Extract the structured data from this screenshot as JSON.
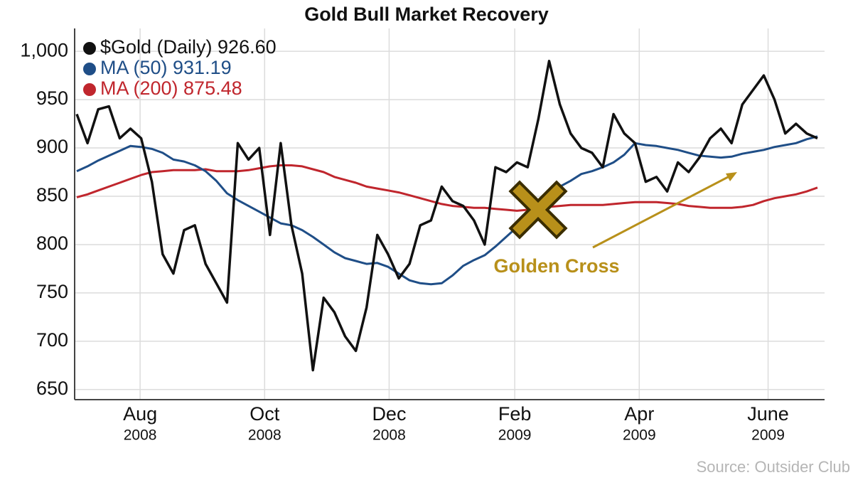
{
  "chart_data": {
    "type": "line",
    "title": "Gold Bull Market Recovery",
    "source": "Source: Outsider Club",
    "annotation": "Golden Cross",
    "annotation_color": "#b8901a",
    "grid": true,
    "legend": "upper left",
    "xlim": [
      0,
      69
    ],
    "xticks": [
      {
        "value": 5.9,
        "label": "Aug"
      },
      {
        "value": 17.5,
        "label": "Oct"
      },
      {
        "value": 29.1,
        "label": "Dec"
      },
      {
        "value": 40.8,
        "label": "Feb"
      },
      {
        "value": 52.4,
        "label": "Apr"
      },
      {
        "value": 64.4,
        "label": "June"
      }
    ],
    "xtick_years": [
      "2008",
      "2008",
      "2008",
      "2009",
      "2009",
      "2009"
    ],
    "ylim": [
      641,
      1020
    ],
    "yticks": [
      650,
      700,
      750,
      800,
      850,
      900,
      950,
      {
        "value": 1000,
        "label": "1,000"
      }
    ],
    "series": [
      {
        "name": "$Gold (Daily) 926.60",
        "color": "#111111",
        "values": [
          935,
          905,
          940,
          943,
          910,
          920,
          910,
          865,
          790,
          770,
          815,
          820,
          780,
          760,
          740,
          905,
          888,
          900,
          810,
          905,
          820,
          770,
          670,
          745,
          730,
          705,
          690,
          735,
          810,
          790,
          765,
          780,
          820,
          825,
          860,
          845,
          840,
          825,
          800,
          880,
          875,
          885,
          880,
          930,
          990,
          945,
          915,
          900,
          895,
          880,
          935,
          915,
          905,
          865,
          870,
          855,
          885,
          875,
          890,
          910,
          920,
          905,
          945,
          960,
          975,
          950,
          915,
          925,
          915,
          910
        ]
      },
      {
        "name": "MA (50) 931.19",
        "color": "#1f4e87",
        "values": [
          876,
          881,
          887,
          892,
          897,
          902,
          901,
          899,
          895,
          888,
          886,
          882,
          876,
          866,
          853,
          846,
          840,
          834,
          828,
          822,
          820,
          815,
          808,
          800,
          792,
          786,
          783,
          780,
          781,
          777,
          770,
          763,
          760,
          759,
          760,
          768,
          778,
          784,
          789,
          798,
          808,
          818,
          830,
          842,
          852,
          860,
          866,
          873,
          876,
          880,
          885,
          893,
          905,
          903,
          902,
          900,
          898,
          895,
          892,
          891,
          890,
          891,
          894,
          896,
          898,
          901,
          903,
          905,
          909,
          912
        ]
      },
      {
        "name": "MA (200) 875.48",
        "color": "#c0262d",
        "values": [
          849,
          852,
          856,
          860,
          864,
          868,
          872,
          875,
          876,
          877,
          877,
          877,
          878,
          876,
          876,
          876,
          877,
          879,
          881,
          882,
          882,
          881,
          878,
          875,
          870,
          867,
          864,
          860,
          858,
          856,
          854,
          851,
          848,
          845,
          842,
          840,
          839,
          838,
          838,
          837,
          836,
          835,
          836,
          838,
          839,
          840,
          841,
          841,
          841,
          841,
          842,
          843,
          844,
          844,
          844,
          843,
          842,
          840,
          839,
          838,
          838,
          838,
          839,
          841,
          845,
          848,
          850,
          852,
          855,
          859
        ]
      }
    ]
  }
}
